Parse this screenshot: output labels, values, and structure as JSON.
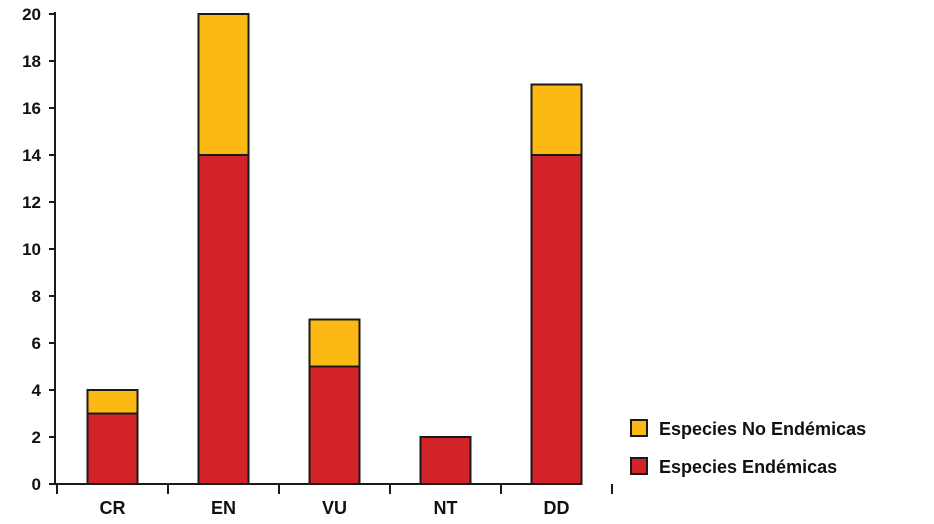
{
  "chart_data": {
    "type": "bar",
    "stacked": true,
    "categories": [
      "CR",
      "EN",
      "VU",
      "NT",
      "DD"
    ],
    "series": [
      {
        "name": "Especies Endémicas",
        "values": [
          3,
          14,
          5,
          2,
          14
        ],
        "color": "#D3232A"
      },
      {
        "name": "Especies No Endémicas",
        "values": [
          1,
          6,
          2,
          0,
          3
        ],
        "color": "#FDB913"
      }
    ],
    "title": "",
    "xlabel": "",
    "ylabel": "",
    "ylim": [
      0,
      20
    ],
    "yticks": [
      0,
      2,
      4,
      6,
      8,
      10,
      12,
      14,
      16,
      18,
      20
    ],
    "grid": false,
    "legend": {
      "placement": "right",
      "order": [
        "Especies No Endémicas",
        "Especies Endémicas"
      ]
    }
  }
}
